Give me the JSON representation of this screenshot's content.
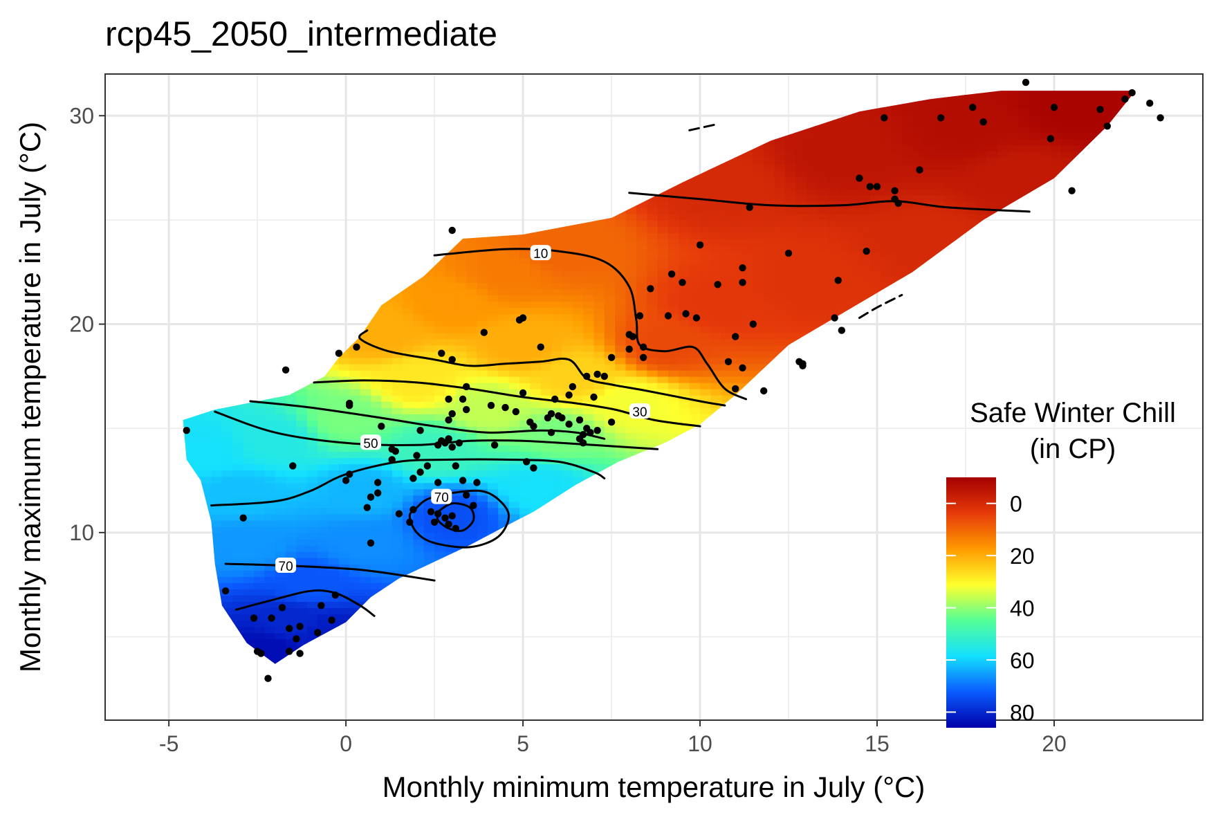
{
  "chart_data": {
    "type": "heatmap",
    "title": "rcp45_2050_intermediate",
    "xlabel": "Monthly minimum temperature in July (°C)",
    "ylabel": "Monthly maximum temperature in July (°C)",
    "xlim": [
      -6.8,
      24.2
    ],
    "ylim": [
      1.0,
      32.0
    ],
    "x_ticks": [
      -5,
      0,
      5,
      10,
      15,
      20
    ],
    "x_tick_labels": [
      "-5",
      "0",
      "5",
      "10",
      "15",
      "20"
    ],
    "y_ticks": [
      10,
      20,
      30
    ],
    "y_tick_labels": [
      "10",
      "20",
      "30"
    ],
    "grid": true,
    "legend": {
      "title_lines": [
        "Safe Winter Chill",
        "(in CP)"
      ],
      "position": "right",
      "scale": "reversed",
      "range": [
        -10,
        86
      ],
      "breaks": [
        0,
        20,
        40,
        60,
        80
      ],
      "break_labels": [
        "0",
        "20",
        "40",
        "60",
        "80"
      ],
      "colors": [
        "#a50000",
        "#e63a0a",
        "#ff9a00",
        "#ffff2d",
        "#55ff96",
        "#14e0ff",
        "#0a5bff",
        "#0000a8"
      ]
    },
    "surface_region": [
      [
        -4.6,
        15.4
      ],
      [
        -3.7,
        15.9
      ],
      [
        -1.6,
        16.6
      ],
      [
        -0.6,
        17.5
      ],
      [
        -0.2,
        18.4
      ],
      [
        0.4,
        19.4
      ],
      [
        1.0,
        20.9
      ],
      [
        2.2,
        22.3
      ],
      [
        3.3,
        24.1
      ],
      [
        5.0,
        24.3
      ],
      [
        7.5,
        25.1
      ],
      [
        9.5,
        26.8
      ],
      [
        12.0,
        28.8
      ],
      [
        14.5,
        30.2
      ],
      [
        16.5,
        30.8
      ],
      [
        18.5,
        31.2
      ],
      [
        22.3,
        31.2
      ],
      [
        21.5,
        29.5
      ],
      [
        20.0,
        27.0
      ],
      [
        18.0,
        25.0
      ],
      [
        16.0,
        22.5
      ],
      [
        14.0,
        20.5
      ],
      [
        12.5,
        19.0
      ],
      [
        11.0,
        16.6
      ],
      [
        10.0,
        15.2
      ],
      [
        9.0,
        14.3
      ],
      [
        7.7,
        13.4
      ],
      [
        6.5,
        12.3
      ],
      [
        5.3,
        11.0
      ],
      [
        4.5,
        10.3
      ],
      [
        3.5,
        9.4
      ],
      [
        2.5,
        8.6
      ],
      [
        1.5,
        7.8
      ],
      [
        0.7,
        6.9
      ],
      [
        0.0,
        5.7
      ],
      [
        -1.2,
        4.6
      ],
      [
        -2.0,
        3.7
      ],
      [
        -2.8,
        4.7
      ],
      [
        -3.5,
        6.5
      ],
      [
        -3.7,
        8.5
      ],
      [
        -3.8,
        10.5
      ],
      [
        -4.1,
        12.5
      ],
      [
        -4.5,
        13.5
      ]
    ],
    "chill_field_points": [
      {
        "x": 20.5,
        "y": 30.5,
        "z": -9
      },
      {
        "x": 17.5,
        "y": 29.5,
        "z": -7
      },
      {
        "x": 14.0,
        "y": 28.2,
        "z": -5
      },
      {
        "x": 19.0,
        "y": 27.0,
        "z": -4
      },
      {
        "x": 10.5,
        "y": 26.6,
        "z": 0
      },
      {
        "x": 16.5,
        "y": 24.0,
        "z": 0
      },
      {
        "x": 13.0,
        "y": 22.0,
        "z": 2
      },
      {
        "x": 10.5,
        "y": 21.0,
        "z": 3
      },
      {
        "x": 9.0,
        "y": 19.0,
        "z": 6
      },
      {
        "x": 6.0,
        "y": 23.5,
        "z": 10
      },
      {
        "x": 4.5,
        "y": 22.5,
        "z": 13
      },
      {
        "x": 3.0,
        "y": 21.0,
        "z": 17
      },
      {
        "x": 5.0,
        "y": 19.0,
        "z": 20
      },
      {
        "x": 1.0,
        "y": 19.5,
        "z": 20
      },
      {
        "x": 6.5,
        "y": 17.5,
        "z": 25
      },
      {
        "x": 2.0,
        "y": 17.3,
        "z": 28
      },
      {
        "x": 8.0,
        "y": 16.2,
        "z": 32
      },
      {
        "x": 4.0,
        "y": 16.0,
        "z": 36
      },
      {
        "x": 0.0,
        "y": 15.5,
        "z": 42
      },
      {
        "x": 6.0,
        "y": 14.6,
        "z": 42
      },
      {
        "x": 2.5,
        "y": 14.0,
        "z": 50
      },
      {
        "x": -2.0,
        "y": 14.5,
        "z": 55
      },
      {
        "x": -4.0,
        "y": 14.0,
        "z": 58
      },
      {
        "x": 5.5,
        "y": 12.3,
        "z": 58
      },
      {
        "x": 0.5,
        "y": 12.0,
        "z": 63
      },
      {
        "x": -3.0,
        "y": 11.8,
        "z": 62
      },
      {
        "x": 3.0,
        "y": 10.8,
        "z": 74
      },
      {
        "x": 0.5,
        "y": 9.5,
        "z": 67
      },
      {
        "x": -2.8,
        "y": 9.5,
        "z": 66
      },
      {
        "x": -1.0,
        "y": 7.5,
        "z": 73
      },
      {
        "x": -1.5,
        "y": 5.8,
        "z": 80
      },
      {
        "x": -0.5,
        "y": 5.2,
        "z": 82
      },
      {
        "x": -2.2,
        "y": 4.3,
        "z": 84
      }
    ],
    "contours": [
      {
        "level": 10,
        "path": [
          [
            2.5,
            23.3
          ],
          [
            4.5,
            23.6
          ],
          [
            6.0,
            23.5
          ],
          [
            7.3,
            23.0
          ],
          [
            8.0,
            21.8
          ],
          [
            8.2,
            20.2
          ],
          [
            8.3,
            19.0
          ],
          [
            9.0,
            18.7
          ],
          [
            9.8,
            18.9
          ],
          [
            10.2,
            18.1
          ],
          [
            10.7,
            16.9
          ],
          [
            11.3,
            16.4
          ]
        ]
      },
      {
        "level": 10,
        "path": [
          [
            8.0,
            26.3
          ],
          [
            10.0,
            26.0
          ],
          [
            12.0,
            25.7
          ],
          [
            14.0,
            25.7
          ],
          [
            15.5,
            25.9
          ],
          [
            17.0,
            25.6
          ],
          [
            19.3,
            25.4
          ]
        ]
      },
      {
        "level": 20,
        "path": [
          [
            0.6,
            19.7
          ],
          [
            0.4,
            19.3
          ],
          [
            1.2,
            18.7
          ],
          [
            2.5,
            18.3
          ],
          [
            3.5,
            18.0
          ],
          [
            4.5,
            18.1
          ],
          [
            5.5,
            18.2
          ],
          [
            6.3,
            18.3
          ],
          [
            6.8,
            17.4
          ],
          [
            7.5,
            17.1
          ],
          [
            8.5,
            16.8
          ],
          [
            10.0,
            16.3
          ],
          [
            10.7,
            16.1
          ]
        ]
      },
      {
        "level": 30,
        "path": [
          [
            -0.9,
            17.2
          ],
          [
            0.5,
            17.3
          ],
          [
            2.0,
            17.2
          ],
          [
            3.5,
            16.9
          ],
          [
            5.0,
            16.5
          ],
          [
            6.5,
            16.2
          ],
          [
            7.6,
            15.9
          ],
          [
            8.7,
            15.4
          ],
          [
            10.0,
            15.1
          ]
        ]
      },
      {
        "level": 40,
        "path": [
          [
            -2.7,
            16.3
          ],
          [
            -1.0,
            16.0
          ],
          [
            1.0,
            15.5
          ],
          [
            2.5,
            15.1
          ],
          [
            4.0,
            14.8
          ],
          [
            5.5,
            14.9
          ],
          [
            6.5,
            14.8
          ],
          [
            7.3,
            14.5
          ]
        ]
      },
      {
        "level": 50,
        "path": [
          [
            -3.7,
            15.8
          ],
          [
            -2.0,
            14.8
          ],
          [
            0.0,
            14.3
          ],
          [
            2.0,
            14.2
          ],
          [
            3.5,
            14.4
          ],
          [
            5.0,
            14.4
          ],
          [
            7.0,
            14.2
          ],
          [
            8.8,
            14.0
          ]
        ]
      },
      {
        "level": 60,
        "path": [
          [
            -3.8,
            11.3
          ],
          [
            -2.0,
            11.5
          ],
          [
            -1.0,
            12.0
          ],
          [
            0.0,
            12.8
          ],
          [
            1.5,
            13.4
          ],
          [
            3.0,
            13.5
          ],
          [
            4.5,
            13.5
          ],
          [
            6.0,
            13.4
          ],
          [
            7.0,
            12.9
          ],
          [
            7.3,
            12.6
          ]
        ]
      },
      {
        "level": 70,
        "path": [
          [
            2.0,
            11.2
          ],
          [
            2.3,
            11.6
          ],
          [
            3.0,
            11.9
          ],
          [
            3.8,
            12.0
          ],
          [
            4.3,
            11.6
          ],
          [
            4.6,
            10.8
          ],
          [
            4.3,
            9.8
          ],
          [
            3.5,
            9.3
          ],
          [
            2.5,
            9.5
          ],
          [
            2.0,
            10.0
          ],
          [
            1.8,
            10.8
          ],
          [
            2.0,
            11.2
          ]
        ]
      },
      {
        "level": 70,
        "path": [
          [
            2.6,
            11.0
          ],
          [
            3.0,
            11.4
          ],
          [
            3.5,
            11.2
          ],
          [
            3.6,
            10.6
          ],
          [
            3.3,
            10.1
          ],
          [
            2.9,
            10.2
          ],
          [
            2.6,
            10.6
          ],
          [
            2.6,
            11.0
          ]
        ]
      },
      {
        "level": 70,
        "path": [
          [
            -3.4,
            8.5
          ],
          [
            -1.5,
            8.4
          ],
          [
            0.5,
            8.2
          ],
          [
            2.5,
            7.7
          ]
        ]
      },
      {
        "level": 80,
        "path": [
          [
            -3.1,
            6.3
          ],
          [
            -2.0,
            6.8
          ],
          [
            -1.0,
            7.2
          ],
          [
            -0.3,
            7.1
          ],
          [
            0.4,
            6.5
          ],
          [
            0.8,
            6.0
          ]
        ]
      },
      {
        "level": 0,
        "dashed": true,
        "path": [
          [
            9.7,
            29.3
          ],
          [
            10.5,
            29.6
          ]
        ]
      },
      {
        "level": 0,
        "dashed": true,
        "path": [
          [
            14.5,
            20.3
          ],
          [
            15.0,
            20.8
          ],
          [
            15.7,
            21.4
          ]
        ]
      }
    ],
    "contour_labels": [
      {
        "text": "10",
        "x": 5.5,
        "y": 23.4
      },
      {
        "text": "30",
        "x": 8.3,
        "y": 15.8
      },
      {
        "text": "50",
        "x": 0.7,
        "y": 14.3
      },
      {
        "text": "70",
        "x": 2.7,
        "y": 11.7
      },
      {
        "text": "70",
        "x": -1.7,
        "y": 8.4
      }
    ],
    "points": [
      [
        3.0,
        24.5
      ],
      [
        5.0,
        20.3
      ],
      [
        4.9,
        20.2
      ],
      [
        3.9,
        19.6
      ],
      [
        0.3,
        18.9
      ],
      [
        -0.2,
        18.6
      ],
      [
        2.7,
        18.6
      ],
      [
        3.0,
        18.3
      ],
      [
        5.5,
        18.9
      ],
      [
        8.1,
        19.4
      ],
      [
        8.4,
        18.9
      ],
      [
        8.4,
        18.4
      ],
      [
        7.5,
        18.4
      ],
      [
        6.8,
        17.5
      ],
      [
        7.1,
        17.6
      ],
      [
        7.3,
        17.5
      ],
      [
        -1.7,
        17.8
      ],
      [
        3.4,
        17.0
      ],
      [
        6.4,
        17.0
      ],
      [
        0.1,
        16.2
      ],
      [
        0.1,
        16.1
      ],
      [
        2.9,
        16.4
      ],
      [
        3.3,
        16.4
      ],
      [
        5.0,
        16.7
      ],
      [
        5.9,
        16.4
      ],
      [
        6.3,
        16.6
      ],
      [
        7.0,
        16.5
      ],
      [
        4.5,
        16.0
      ],
      [
        4.8,
        15.8
      ],
      [
        3.4,
        15.9
      ],
      [
        2.9,
        15.4
      ],
      [
        3.0,
        15.7
      ],
      [
        6.1,
        15.5
      ],
      [
        5.8,
        15.7
      ],
      [
        5.7,
        15.5
      ],
      [
        6.0,
        15.6
      ],
      [
        6.6,
        15.4
      ],
      [
        4.1,
        16.1
      ],
      [
        5.2,
        15.3
      ],
      [
        5.3,
        15.1
      ],
      [
        6.3,
        15.2
      ],
      [
        6.8,
        15.0
      ],
      [
        6.9,
        14.8
      ],
      [
        7.1,
        14.9
      ],
      [
        6.7,
        14.7
      ],
      [
        5.8,
        14.8
      ],
      [
        2.9,
        14.5
      ],
      [
        2.7,
        14.4
      ],
      [
        2.8,
        14.3
      ],
      [
        3.2,
        14.3
      ],
      [
        3.0,
        14.1
      ],
      [
        2.6,
        14.2
      ],
      [
        7.5,
        15.3
      ],
      [
        1.0,
        15.1
      ],
      [
        2.1,
        14.9
      ],
      [
        4.2,
        14.2
      ],
      [
        6.6,
        14.5
      ],
      [
        6.7,
        14.3
      ],
      [
        1.3,
        14.0
      ],
      [
        1.4,
        13.9
      ],
      [
        -4.5,
        14.9
      ],
      [
        -1.5,
        13.2
      ],
      [
        0.1,
        12.8
      ],
      [
        0.0,
        12.5
      ],
      [
        0.9,
        12.4
      ],
      [
        1.3,
        13.5
      ],
      [
        2.0,
        13.7
      ],
      [
        2.3,
        13.2
      ],
      [
        2.1,
        12.9
      ],
      [
        1.9,
        12.6
      ],
      [
        3.1,
        13.2
      ],
      [
        5.3,
        13.1
      ],
      [
        5.1,
        13.4
      ],
      [
        3.3,
        12.5
      ],
      [
        3.7,
        12.4
      ],
      [
        3.4,
        11.8
      ],
      [
        3.6,
        11.3
      ],
      [
        2.6,
        12.4
      ],
      [
        1.9,
        11.1
      ],
      [
        2.4,
        11.0
      ],
      [
        2.6,
        10.9
      ],
      [
        2.8,
        10.7
      ],
      [
        3.0,
        10.8
      ],
      [
        2.9,
        10.4
      ],
      [
        3.1,
        10.2
      ],
      [
        1.5,
        10.9
      ],
      [
        1.8,
        10.5
      ],
      [
        2.5,
        10.5
      ],
      [
        0.9,
        11.9
      ],
      [
        0.7,
        11.7
      ],
      [
        0.6,
        11.2
      ],
      [
        -2.9,
        10.7
      ],
      [
        0.7,
        9.5
      ],
      [
        -3.4,
        7.2
      ],
      [
        -0.3,
        7.0
      ],
      [
        -0.7,
        6.5
      ],
      [
        -1.8,
        6.4
      ],
      [
        -1.6,
        5.4
      ],
      [
        -2.1,
        5.9
      ],
      [
        -1.3,
        5.5
      ],
      [
        -2.6,
        5.9
      ],
      [
        -1.4,
        4.9
      ],
      [
        -0.8,
        5.2
      ],
      [
        -0.4,
        5.8
      ],
      [
        -2.5,
        4.3
      ],
      [
        -2.4,
        4.2
      ],
      [
        -1.6,
        4.3
      ],
      [
        -1.3,
        4.2
      ],
      [
        -2.2,
        3.0
      ],
      [
        8.0,
        18.8
      ],
      [
        8.3,
        20.4
      ],
      [
        8.6,
        21.7
      ],
      [
        9.5,
        22.0
      ],
      [
        9.2,
        22.4
      ],
      [
        10.0,
        23.8
      ],
      [
        10.5,
        21.9
      ],
      [
        11.2,
        22.0
      ],
      [
        11.2,
        22.7
      ],
      [
        12.8,
        18.2
      ],
      [
        11.0,
        19.4
      ],
      [
        11.5,
        20.0
      ],
      [
        10.8,
        18.2
      ],
      [
        11.2,
        17.9
      ],
      [
        11.0,
        16.9
      ],
      [
        12.5,
        23.4
      ],
      [
        12.9,
        18.0
      ],
      [
        11.8,
        16.8
      ],
      [
        9.6,
        20.5
      ],
      [
        9.9,
        20.3
      ],
      [
        9.1,
        20.4
      ],
      [
        13.9,
        22.1
      ],
      [
        13.8,
        20.3
      ],
      [
        14.0,
        19.7
      ],
      [
        14.7,
        23.5
      ],
      [
        14.5,
        27.0
      ],
      [
        14.8,
        26.6
      ],
      [
        15.0,
        26.6
      ],
      [
        15.5,
        26.0
      ],
      [
        15.6,
        25.8
      ],
      [
        15.5,
        26.4
      ],
      [
        16.2,
        27.4
      ],
      [
        15.2,
        29.9
      ],
      [
        16.8,
        29.9
      ],
      [
        17.7,
        30.4
      ],
      [
        18.0,
        29.7
      ],
      [
        19.2,
        31.6
      ],
      [
        19.9,
        28.9
      ],
      [
        20.0,
        30.4
      ],
      [
        21.3,
        30.3
      ],
      [
        22.0,
        30.8
      ],
      [
        22.2,
        31.1
      ],
      [
        22.7,
        30.6
      ],
      [
        23.0,
        29.9
      ],
      [
        21.5,
        29.5
      ],
      [
        20.5,
        26.4
      ],
      [
        11.4,
        25.6
      ],
      [
        12.9,
        18.1
      ],
      [
        8.0,
        19.5
      ]
    ]
  }
}
